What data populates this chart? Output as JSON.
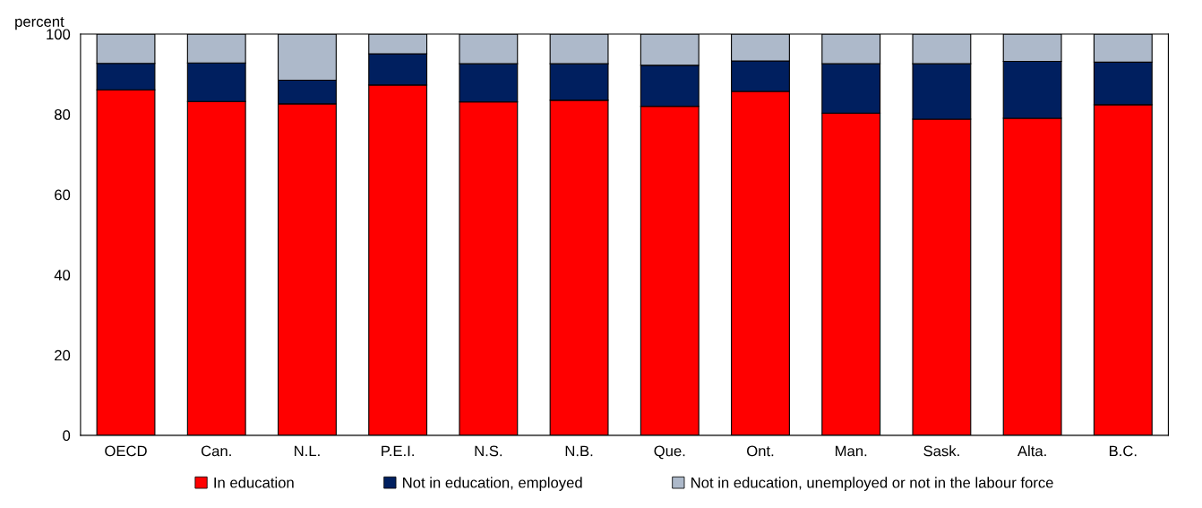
{
  "chart_data": {
    "type": "bar",
    "stacked": true,
    "ylabel": "percent",
    "categories": [
      "OECD",
      "Can.",
      "N.L.",
      "P.E.I.",
      "N.S.",
      "N.B.",
      "Que.",
      "Ont.",
      "Man.",
      "Sask.",
      "Alta.",
      "B.C."
    ],
    "series": [
      {
        "name": "In education",
        "color": "#ff0000",
        "values": [
          86.1,
          83.2,
          82.6,
          87.3,
          83.1,
          83.5,
          82.0,
          85.7,
          80.3,
          78.8,
          79.0,
          82.4
        ]
      },
      {
        "name": "Not in education, employed",
        "color": "#001f5f",
        "values": [
          6.6,
          9.6,
          5.9,
          7.8,
          9.5,
          9.1,
          10.2,
          7.6,
          12.3,
          13.8,
          14.2,
          10.6
        ]
      },
      {
        "name": "Not in education, unemployed or not in the labour force",
        "color": "#adb9ca",
        "values": [
          7.3,
          7.2,
          11.5,
          4.9,
          7.4,
          7.4,
          7.8,
          6.7,
          7.4,
          7.4,
          6.8,
          7.0
        ]
      }
    ],
    "ylim": [
      0,
      100
    ],
    "yticks": [
      0,
      20,
      40,
      60,
      80,
      100
    ],
    "grid": false,
    "legend": "bottom"
  }
}
